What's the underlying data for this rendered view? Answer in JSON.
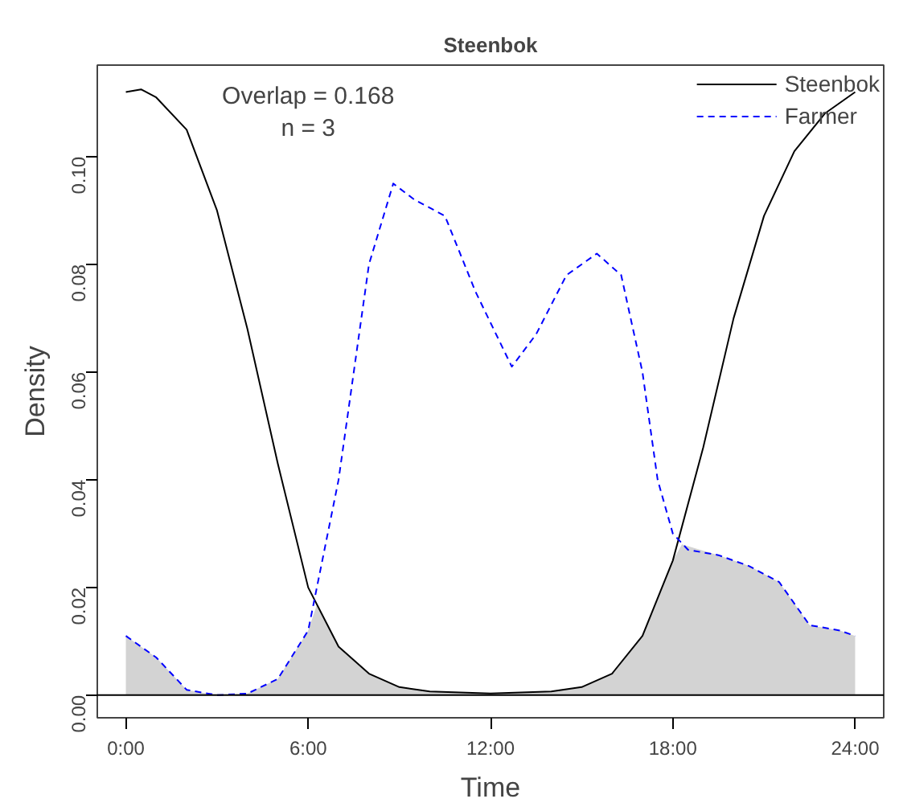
{
  "chart_data": {
    "type": "line",
    "title": "Steenbok",
    "xlabel": "Time",
    "ylabel": "Density",
    "xlim": [
      -0.94,
      24.94
    ],
    "ylim": [
      -0.0042,
      0.117
    ],
    "xticks": [
      {
        "value": 0,
        "label": "0:00"
      },
      {
        "value": 6,
        "label": "6:00"
      },
      {
        "value": 12,
        "label": "12:00"
      },
      {
        "value": 18,
        "label": "18:00"
      },
      {
        "value": 24,
        "label": "24:00"
      }
    ],
    "yticks": [
      {
        "value": 0,
        "label": "0.00"
      },
      {
        "value": 0.02,
        "label": "0.02"
      },
      {
        "value": 0.04,
        "label": "0.04"
      },
      {
        "value": 0.06,
        "label": "0.06"
      },
      {
        "value": 0.08,
        "label": "0.08"
      },
      {
        "value": 0.1,
        "label": "0.10"
      }
    ],
    "annotations": [
      "Overlap = 0.168",
      "n = 3"
    ],
    "legend": "top right",
    "grid": false,
    "ref_lines": [
      {
        "axis": "y",
        "value": 0,
        "color": "#000000"
      }
    ],
    "series": [
      {
        "type": "area",
        "color": "#d3d3d3",
        "x": [
          0,
          1,
          2,
          3,
          4,
          5,
          6,
          6.3,
          7,
          8,
          9,
          10,
          12,
          14,
          15,
          16,
          17,
          18,
          18.3,
          19.5,
          20.5,
          21.5,
          22.5,
          23.5,
          24
        ],
        "values": [
          0.011,
          0.007,
          0.001,
          0,
          0.0003,
          0.003,
          0.012,
          0.017,
          0.009,
          0.004,
          0.0015,
          0.0007,
          0.0003,
          0.0007,
          0.0015,
          0.004,
          0.011,
          0.025,
          0.028,
          0.026,
          0.024,
          0.021,
          0.013,
          0.012,
          0.011
        ]
      },
      {
        "name": "Steenbok",
        "color": "#000000",
        "line_style": "solid",
        "x": [
          0,
          0.5,
          1,
          2,
          3,
          4,
          5,
          6,
          7,
          8,
          9,
          10,
          12,
          14,
          15,
          16,
          17,
          18,
          19,
          20,
          21,
          22,
          23,
          24
        ],
        "values": [
          0.112,
          0.1125,
          0.111,
          0.105,
          0.09,
          0.068,
          0.043,
          0.02,
          0.009,
          0.004,
          0.0015,
          0.0007,
          0.0003,
          0.0007,
          0.0015,
          0.004,
          0.011,
          0.025,
          0.046,
          0.07,
          0.089,
          0.101,
          0.108,
          0.112
        ]
      },
      {
        "name": "Farmer",
        "color": "#0000ff",
        "line_style": "dashed",
        "x": [
          0,
          1,
          2,
          3,
          4,
          5,
          6,
          7,
          8,
          8.8,
          9.5,
          10.5,
          11.5,
          12.7,
          13.5,
          14.5,
          15.5,
          16.3,
          17,
          17.5,
          18,
          18.5,
          19.5,
          20.5,
          21.5,
          22.5,
          23.5,
          24
        ],
        "values": [
          0.011,
          0.007,
          0.001,
          0,
          0.0003,
          0.003,
          0.012,
          0.04,
          0.08,
          0.095,
          0.092,
          0.089,
          0.075,
          0.061,
          0.067,
          0.078,
          0.082,
          0.078,
          0.06,
          0.04,
          0.03,
          0.027,
          0.026,
          0.024,
          0.021,
          0.013,
          0.012,
          0.011
        ]
      }
    ]
  }
}
